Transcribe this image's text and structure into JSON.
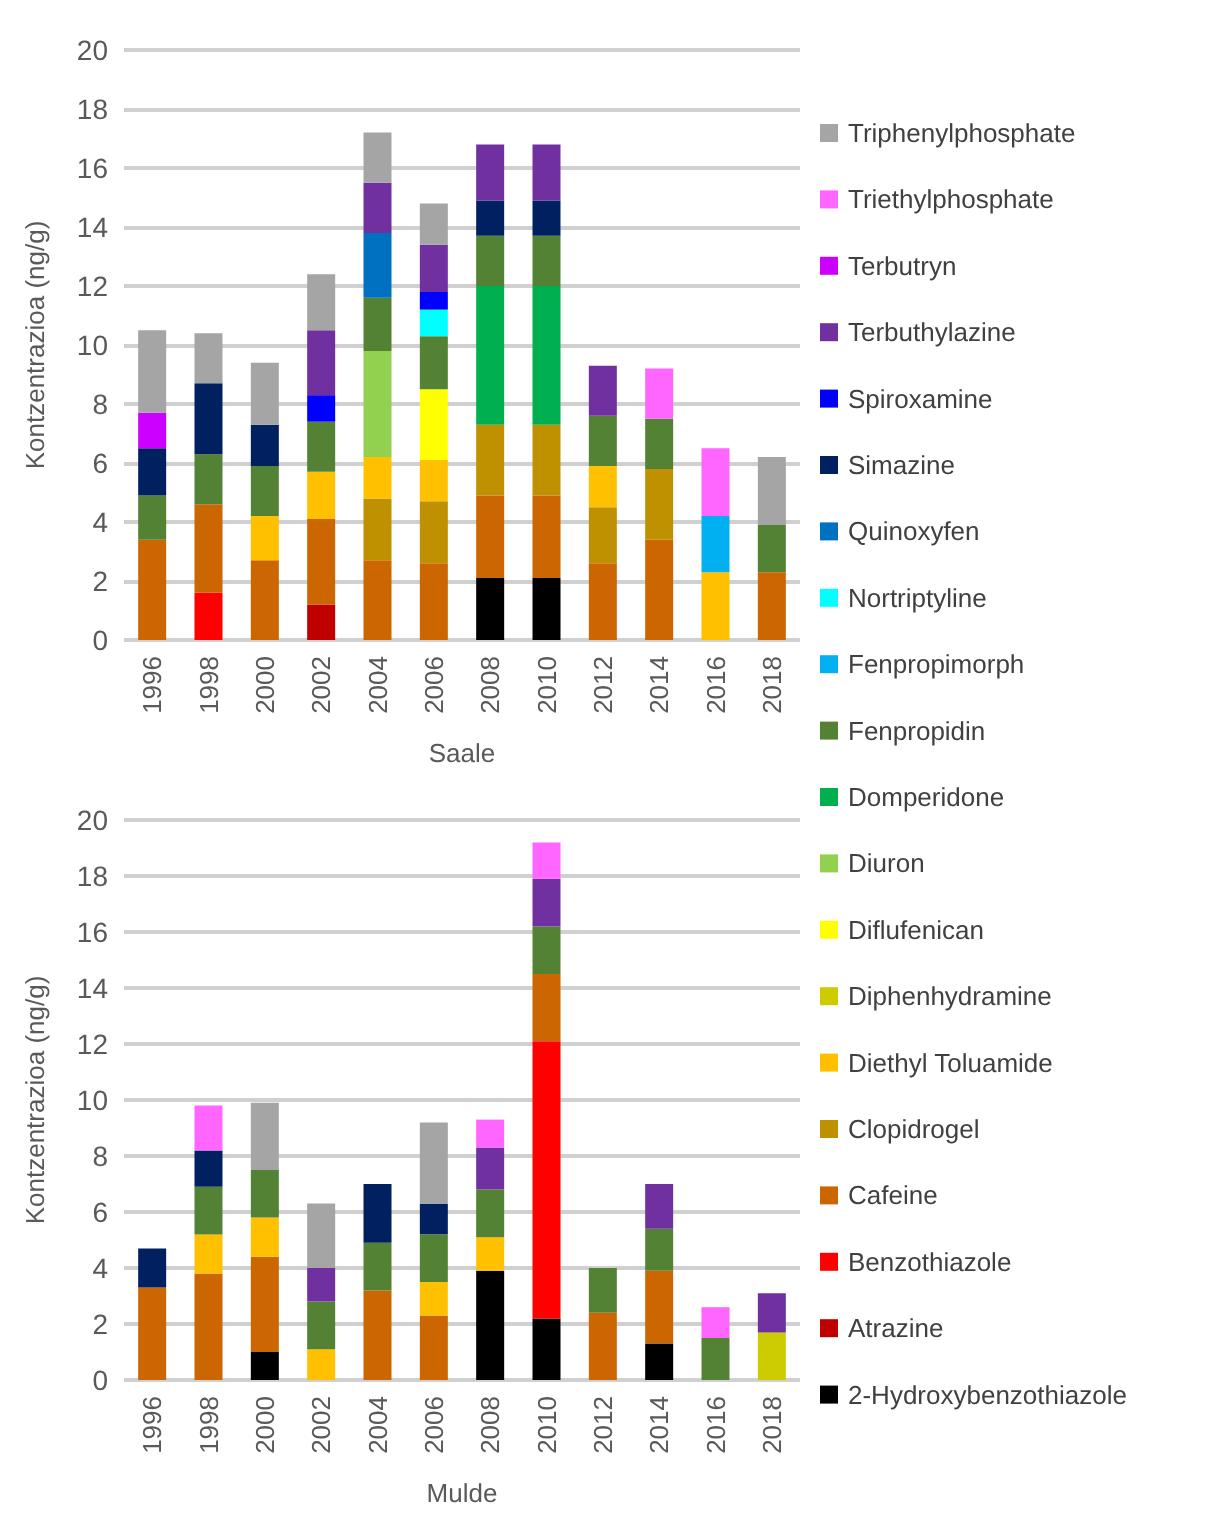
{
  "chart_data": [
    {
      "type": "bar",
      "stacked": true,
      "xlabel": "Saale",
      "ylabel": "Kontzentrazioa (ng/g)",
      "categories": [
        "1996",
        "1998",
        "2000",
        "2002",
        "2004",
        "2006",
        "2008",
        "2010",
        "2012",
        "2014",
        "2016",
        "2018"
      ],
      "ylim": [
        0,
        20
      ],
      "yticks": [
        0,
        2,
        4,
        6,
        8,
        10,
        12,
        14,
        16,
        18,
        20
      ],
      "grid": "y",
      "legend": "right",
      "series": [
        {
          "name": "2-Hydroxybenzothiazole",
          "color": "#000000",
          "values": [
            null,
            null,
            null,
            null,
            null,
            null,
            2.1,
            2.1,
            null,
            null,
            null,
            null
          ]
        },
        {
          "name": "Atrazine",
          "color": "#c00000",
          "values": [
            null,
            null,
            null,
            1.2,
            null,
            null,
            null,
            null,
            null,
            null,
            null,
            null
          ]
        },
        {
          "name": "Benzothiazole",
          "color": "#ff0000",
          "values": [
            null,
            1.6,
            null,
            null,
            null,
            null,
            null,
            null,
            null,
            null,
            null,
            null
          ]
        },
        {
          "name": "Cafeine",
          "color": "#cc6600",
          "values": [
            3.4,
            3.0,
            2.7,
            2.9,
            2.7,
            2.6,
            2.8,
            2.8,
            2.6,
            3.4,
            null,
            2.3
          ]
        },
        {
          "name": "Clopidrogel",
          "color": "#bf9000",
          "values": [
            null,
            null,
            null,
            null,
            2.1,
            2.1,
            2.4,
            2.4,
            1.9,
            2.4,
            null,
            null
          ]
        },
        {
          "name": "Diethyl Toluamide",
          "color": "#ffc000",
          "values": [
            null,
            null,
            1.5,
            1.6,
            1.4,
            1.4,
            null,
            null,
            1.4,
            null,
            2.3,
            null
          ]
        },
        {
          "name": "Diflufenican",
          "color": "#ffff00",
          "values": [
            null,
            null,
            null,
            null,
            null,
            2.4,
            null,
            null,
            null,
            null,
            null,
            null
          ]
        },
        {
          "name": "Diuron",
          "color": "#92d050",
          "values": [
            null,
            null,
            null,
            null,
            3.6,
            null,
            null,
            null,
            null,
            null,
            null,
            null
          ]
        },
        {
          "name": "Domperidone",
          "color": "#00b050",
          "values": [
            null,
            null,
            null,
            null,
            null,
            null,
            4.7,
            4.7,
            null,
            null,
            null,
            null
          ]
        },
        {
          "name": "Fenpropidin",
          "color": "#548235",
          "values": [
            1.5,
            1.7,
            1.7,
            1.7,
            1.8,
            1.8,
            1.7,
            1.7,
            1.7,
            1.7,
            null,
            1.6
          ]
        },
        {
          "name": "Fenpropimorph",
          "color": "#00b0f0",
          "values": [
            null,
            null,
            null,
            null,
            null,
            null,
            null,
            null,
            null,
            null,
            1.9,
            null
          ]
        },
        {
          "name": "Nortriptyline",
          "color": "#00ffff",
          "values": [
            null,
            null,
            null,
            null,
            null,
            0.9,
            null,
            null,
            null,
            null,
            null,
            null
          ]
        },
        {
          "name": "Quinoxyfen",
          "color": "#0070c0",
          "values": [
            null,
            null,
            null,
            null,
            2.2,
            null,
            null,
            null,
            null,
            null,
            null,
            null
          ]
        },
        {
          "name": "Simazine",
          "color": "#002060",
          "values": [
            1.6,
            2.4,
            1.4,
            null,
            null,
            null,
            1.2,
            1.2,
            null,
            null,
            null,
            null
          ]
        },
        {
          "name": "Spiroxamine",
          "color": "#0000ff",
          "values": [
            null,
            null,
            null,
            0.9,
            null,
            0.6,
            null,
            null,
            null,
            null,
            null,
            null
          ]
        },
        {
          "name": "Terbuthylazine",
          "color": "#7030a0",
          "values": [
            null,
            null,
            null,
            2.2,
            1.7,
            1.6,
            1.9,
            1.9,
            1.7,
            null,
            null,
            null
          ]
        },
        {
          "name": "Terbutryn",
          "color": "#cc00ff",
          "values": [
            1.2,
            null,
            null,
            null,
            null,
            null,
            null,
            null,
            null,
            null,
            null,
            null
          ]
        },
        {
          "name": "Triethylphosphate",
          "color": "#ff66ff",
          "values": [
            null,
            null,
            null,
            null,
            null,
            null,
            null,
            null,
            null,
            1.7,
            2.3,
            null
          ]
        },
        {
          "name": "Triphenylphosphate",
          "color": "#a5a5a5",
          "values": [
            2.8,
            1.7,
            2.1,
            1.9,
            1.7,
            1.4,
            null,
            null,
            null,
            null,
            null,
            2.3
          ]
        }
      ]
    },
    {
      "type": "bar",
      "stacked": true,
      "xlabel": "Mulde",
      "ylabel": "Kontzentrazioa (ng/g)",
      "categories": [
        "1996",
        "1998",
        "2000",
        "2002",
        "2004",
        "2006",
        "2008",
        "2010",
        "2012",
        "2014",
        "2016",
        "2018"
      ],
      "ylim": [
        0,
        20
      ],
      "yticks": [
        0,
        2,
        4,
        6,
        8,
        10,
        12,
        14,
        16,
        18,
        20
      ],
      "grid": "y",
      "legend": "right",
      "series": [
        {
          "name": "2-Hydroxybenzothiazole",
          "color": "#000000",
          "values": [
            null,
            null,
            1.0,
            null,
            null,
            null,
            3.9,
            2.2,
            null,
            1.3,
            null,
            null
          ]
        },
        {
          "name": "Benzothiazole",
          "color": "#ff0000",
          "values": [
            null,
            null,
            null,
            null,
            null,
            null,
            null,
            9.9,
            null,
            null,
            null,
            null
          ]
        },
        {
          "name": "Cafeine",
          "color": "#cc6600",
          "values": [
            3.3,
            3.8,
            3.4,
            null,
            3.2,
            2.3,
            null,
            2.4,
            2.4,
            2.6,
            null,
            null
          ]
        },
        {
          "name": "Diethyl Toluamide",
          "color": "#ffc000",
          "values": [
            null,
            1.4,
            1.4,
            1.1,
            null,
            1.2,
            1.2,
            null,
            null,
            null,
            null,
            null
          ]
        },
        {
          "name": "Diphenhydramine",
          "color": "#cccc00",
          "values": [
            null,
            null,
            null,
            null,
            null,
            null,
            null,
            null,
            null,
            null,
            null,
            1.7
          ]
        },
        {
          "name": "Fenpropidin",
          "color": "#548235",
          "values": [
            null,
            1.7,
            1.7,
            1.7,
            1.7,
            1.7,
            1.7,
            1.7,
            1.6,
            1.5,
            1.5,
            null
          ]
        },
        {
          "name": "Simazine",
          "color": "#002060",
          "values": [
            1.4,
            1.3,
            null,
            null,
            2.1,
            1.1,
            null,
            null,
            null,
            null,
            null,
            null
          ]
        },
        {
          "name": "Terbuthylazine",
          "color": "#7030a0",
          "values": [
            null,
            null,
            null,
            1.2,
            null,
            null,
            1.5,
            1.7,
            null,
            1.6,
            null,
            1.4
          ]
        },
        {
          "name": "Triethylphosphate",
          "color": "#ff66ff",
          "values": [
            null,
            1.6,
            null,
            null,
            null,
            null,
            1.0,
            1.3,
            null,
            null,
            1.1,
            null
          ]
        },
        {
          "name": "Triphenylphosphate",
          "color": "#a5a5a5",
          "values": [
            null,
            null,
            2.4,
            2.3,
            null,
            2.9,
            null,
            null,
            null,
            null,
            null,
            null
          ]
        }
      ]
    }
  ]
}
